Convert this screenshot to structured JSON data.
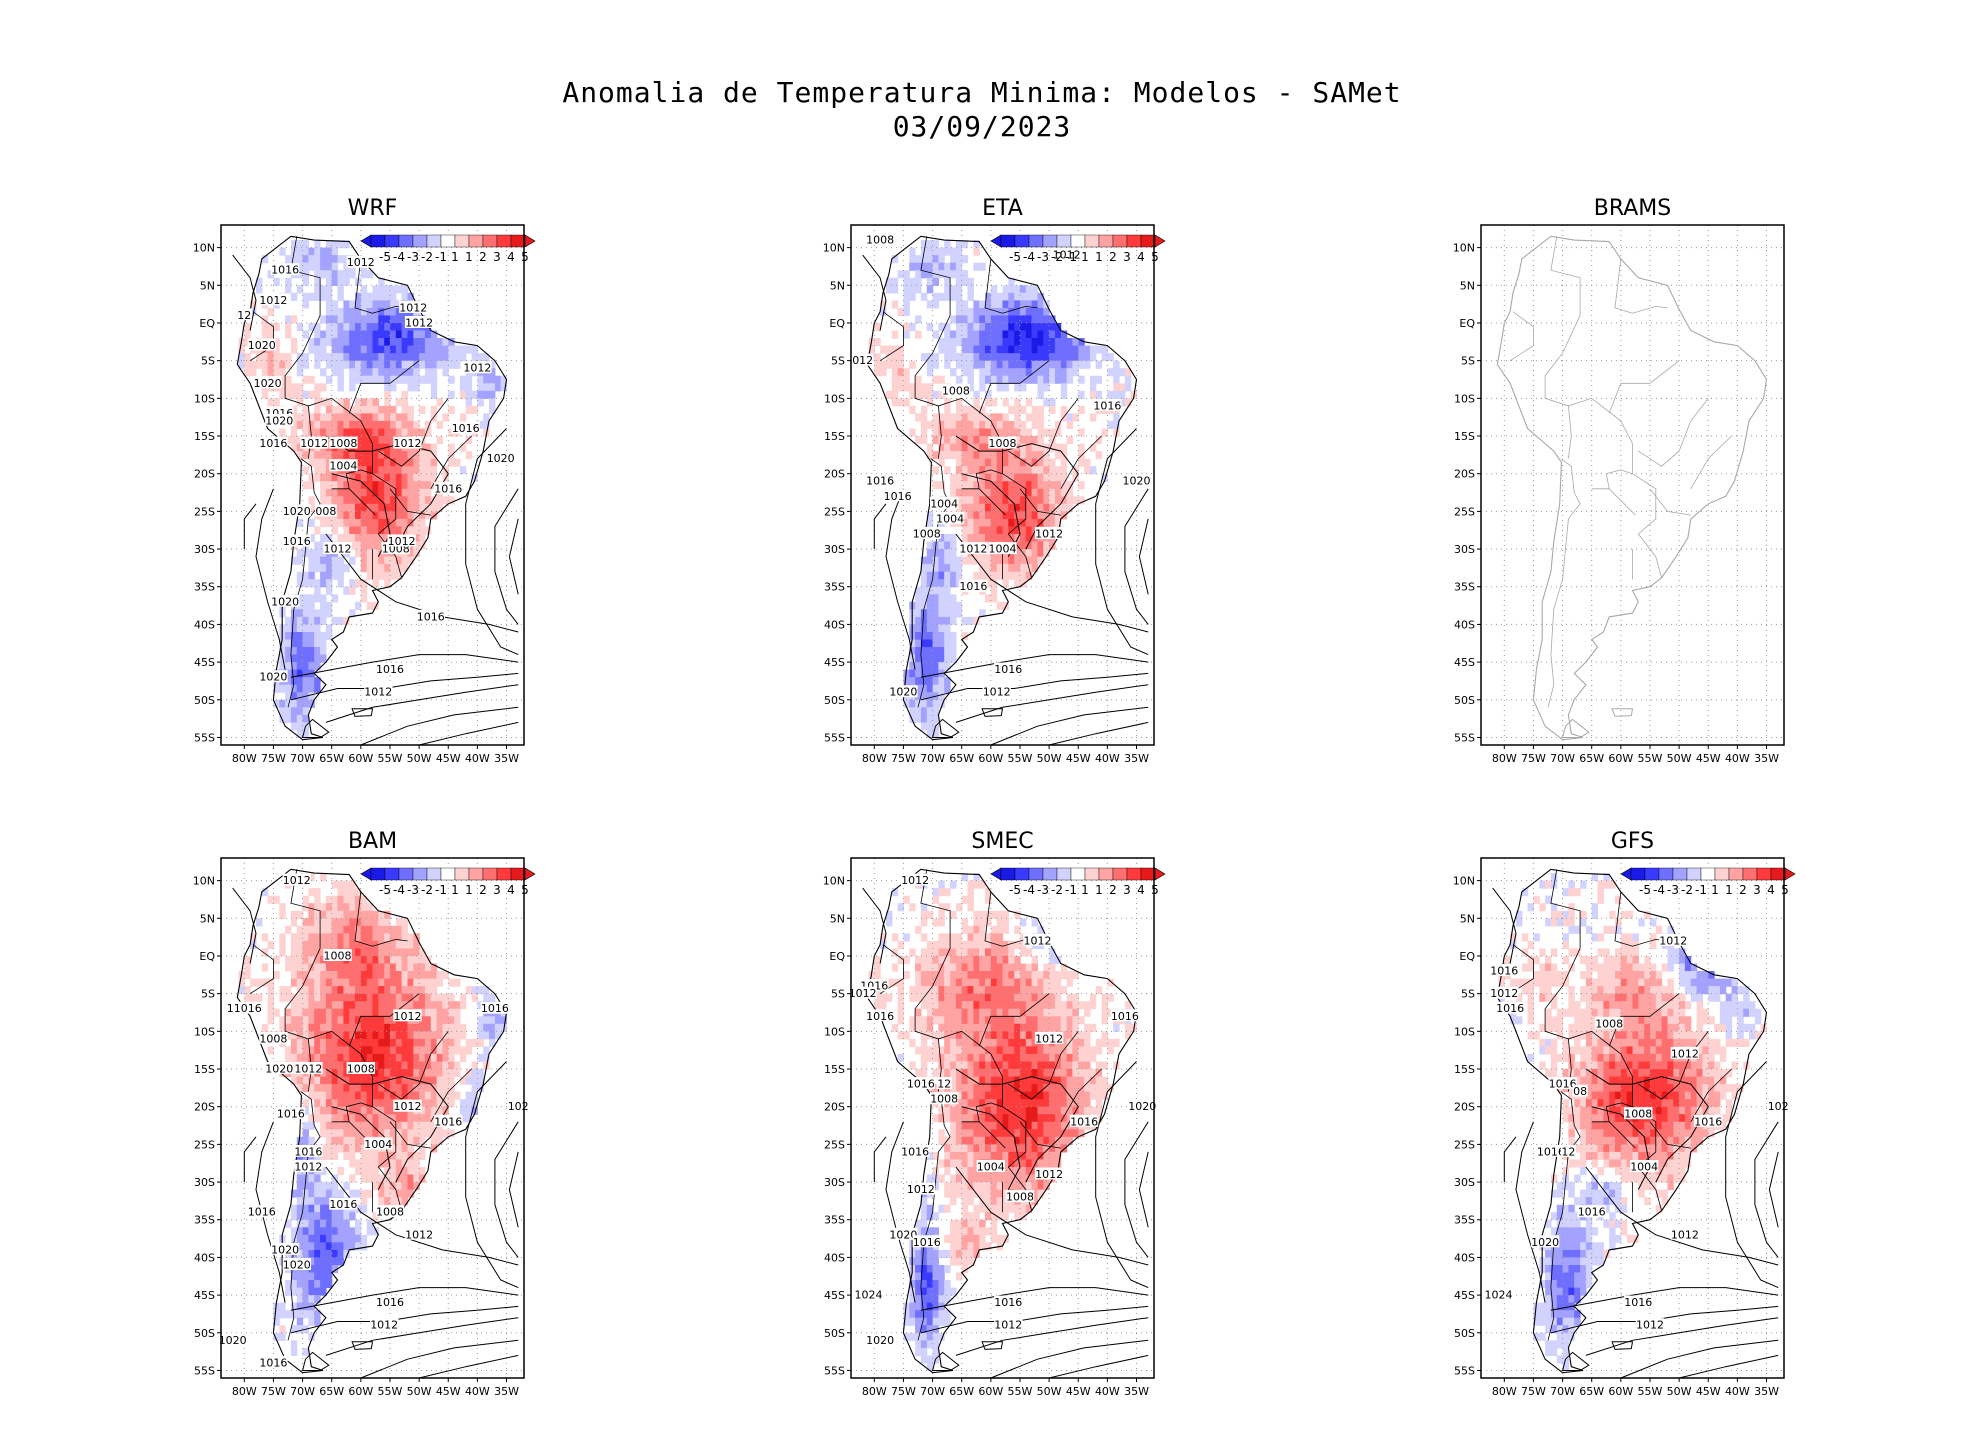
{
  "title_line1": "Anomalia de Temperatura Minima: Modelos - SAMet",
  "title_line2": "03/09/2023",
  "axes": {
    "lat_labels": [
      "10N",
      "5N",
      "EQ",
      "5S",
      "10S",
      "15S",
      "20S",
      "25S",
      "30S",
      "35S",
      "40S",
      "45S",
      "50S",
      "55S"
    ],
    "lon_labels": [
      "80W",
      "75W",
      "70W",
      "65W",
      "60W",
      "55W",
      "50W",
      "45W",
      "40W",
      "35W"
    ]
  },
  "colorbar": {
    "labels": [
      "-5",
      "-4",
      "-3",
      "-2",
      "-1",
      "1",
      "1",
      "2",
      "3",
      "4",
      "5"
    ],
    "colors": [
      "#1a1ae6",
      "#3a3aff",
      "#6f6fff",
      "#a3a3ff",
      "#d2d2ff",
      "#ffffff",
      "#ffd2d2",
      "#ffa3a3",
      "#ff6f6f",
      "#ff3a3a",
      "#e61a1a"
    ]
  },
  "panels": [
    {
      "name": "WRF",
      "has_data": true,
      "pattern": "wrf",
      "contours": [
        {
          "label": "1016",
          "lon": -73,
          "lat": 7
        },
        {
          "label": "1012",
          "lon": -60,
          "lat": 8
        },
        {
          "label": "1012",
          "lon": -75,
          "lat": 3
        },
        {
          "label": "1012",
          "lon": -51,
          "lat": 2
        },
        {
          "label": "1012",
          "lon": -50,
          "lat": 0
        },
        {
          "label": "12",
          "lon": -80,
          "lat": 1
        },
        {
          "label": "1020",
          "lon": -77,
          "lat": -3
        },
        {
          "label": "1020",
          "lon": -76,
          "lat": -8
        },
        {
          "label": "1012",
          "lon": -40,
          "lat": -6
        },
        {
          "label": "1016",
          "lon": -74,
          "lat": -12
        },
        {
          "label": "1020",
          "lon": -74,
          "lat": -13
        },
        {
          "label": "1016",
          "lon": -75,
          "lat": -16
        },
        {
          "label": "1012",
          "lon": -68,
          "lat": -16
        },
        {
          "label": "1008",
          "lon": -63,
          "lat": -16
        },
        {
          "label": "1012",
          "lon": -52,
          "lat": -16
        },
        {
          "label": "1016",
          "lon": -42,
          "lat": -14
        },
        {
          "label": "1004",
          "lon": -63,
          "lat": -19
        },
        {
          "label": "1020",
          "lon": -36,
          "lat": -18
        },
        {
          "label": "1016",
          "lon": -45,
          "lat": -22
        },
        {
          "label": "1020",
          "lon": -71,
          "lat": -25
        },
        {
          "label": "008",
          "lon": -66,
          "lat": -25
        },
        {
          "label": "1016",
          "lon": -71,
          "lat": -29
        },
        {
          "label": "1012",
          "lon": -64,
          "lat": -30
        },
        {
          "label": "1008",
          "lon": -54,
          "lat": -30
        },
        {
          "label": "1012",
          "lon": -53,
          "lat": -29
        },
        {
          "label": "1020",
          "lon": -73,
          "lat": -37
        },
        {
          "label": "1016",
          "lon": -48,
          "lat": -39
        },
        {
          "label": "1016",
          "lon": -55,
          "lat": -46
        },
        {
          "label": "1020",
          "lon": -75,
          "lat": -47
        },
        {
          "label": "1012",
          "lon": -57,
          "lat": -49
        }
      ]
    },
    {
      "name": "ETA",
      "has_data": true,
      "pattern": "eta",
      "contours": [
        {
          "label": "1008",
          "lon": -79,
          "lat": 11
        },
        {
          "label": "1012",
          "lon": -47,
          "lat": 9
        },
        {
          "label": "012",
          "lon": -82,
          "lat": -5
        },
        {
          "label": "1008",
          "lon": -66,
          "lat": -9
        },
        {
          "label": "1016",
          "lon": -40,
          "lat": -11
        },
        {
          "label": "1008",
          "lon": -58,
          "lat": -16
        },
        {
          "label": "1016",
          "lon": -79,
          "lat": -21
        },
        {
          "label": "1020",
          "lon": -35,
          "lat": -21
        },
        {
          "label": "1016",
          "lon": -76,
          "lat": -23
        },
        {
          "label": "1004",
          "lon": -68,
          "lat": -24
        },
        {
          "label": "1004",
          "lon": -67,
          "lat": -26
        },
        {
          "label": "1008",
          "lon": -71,
          "lat": -28
        },
        {
          "label": "1012",
          "lon": -63,
          "lat": -30
        },
        {
          "label": "1004",
          "lon": -58,
          "lat": -30
        },
        {
          "label": "1012",
          "lon": -50,
          "lat": -28
        },
        {
          "label": "1016",
          "lon": -63,
          "lat": -35
        },
        {
          "label": "1016",
          "lon": -57,
          "lat": -46
        },
        {
          "label": "1020",
          "lon": -75,
          "lat": -49
        },
        {
          "label": "1012",
          "lon": -59,
          "lat": -49
        }
      ]
    },
    {
      "name": "BRAMS",
      "has_data": false,
      "pattern": "none",
      "contours": []
    },
    {
      "name": "BAM",
      "has_data": true,
      "pattern": "bam",
      "contours": [
        {
          "label": "1012",
          "lon": -71,
          "lat": 10
        },
        {
          "label": "1008",
          "lon": -64,
          "lat": 0
        },
        {
          "label": "1012",
          "lon": -52,
          "lat": -8
        },
        {
          "label": "1016",
          "lon": -37,
          "lat": -7
        },
        {
          "label": "11016",
          "lon": -80,
          "lat": -7
        },
        {
          "label": "1008",
          "lon": -75,
          "lat": -11
        },
        {
          "label": "1020",
          "lon": -74,
          "lat": -15
        },
        {
          "label": "1012",
          "lon": -69,
          "lat": -15
        },
        {
          "label": "1008",
          "lon": -60,
          "lat": -15
        },
        {
          "label": "1012",
          "lon": -52,
          "lat": -20
        },
        {
          "label": "1016",
          "lon": -45,
          "lat": -22
        },
        {
          "label": "102",
          "lon": -33,
          "lat": -20
        },
        {
          "label": "1016",
          "lon": -72,
          "lat": -21
        },
        {
          "label": "1004",
          "lon": -57,
          "lat": -25
        },
        {
          "label": "1016",
          "lon": -69,
          "lat": -26
        },
        {
          "label": "1012",
          "lon": -69,
          "lat": -28
        },
        {
          "label": "1016",
          "lon": -63,
          "lat": -33
        },
        {
          "label": "1016",
          "lon": -77,
          "lat": -34
        },
        {
          "label": "1008",
          "lon": -55,
          "lat": -34
        },
        {
          "label": "1012",
          "lon": -50,
          "lat": -37
        },
        {
          "label": "1020",
          "lon": -73,
          "lat": -39
        },
        {
          "label": "1020",
          "lon": -71,
          "lat": -41
        },
        {
          "label": "1016",
          "lon": -55,
          "lat": -46
        },
        {
          "label": "1012",
          "lon": -56,
          "lat": -49
        },
        {
          "label": "1020",
          "lon": -82,
          "lat": -51
        },
        {
          "label": "1016",
          "lon": -75,
          "lat": -54
        }
      ]
    },
    {
      "name": "SMEC",
      "has_data": true,
      "pattern": "smec",
      "contours": [
        {
          "label": "1012",
          "lon": -73,
          "lat": 10
        },
        {
          "label": "1012",
          "lon": -52,
          "lat": 2
        },
        {
          "label": "1016",
          "lon": -80,
          "lat": -4
        },
        {
          "label": "1012",
          "lon": -82,
          "lat": -5
        },
        {
          "label": "1016",
          "lon": -79,
          "lat": -8
        },
        {
          "label": "1016",
          "lon": -37,
          "lat": -8
        },
        {
          "label": "1012",
          "lon": -50,
          "lat": -11
        },
        {
          "label": "1016",
          "lon": -72,
          "lat": -17
        },
        {
          "label": "12",
          "lon": -68,
          "lat": -17
        },
        {
          "label": "1008",
          "lon": -68,
          "lat": -19
        },
        {
          "label": "1016",
          "lon": -44,
          "lat": -22
        },
        {
          "label": "1020",
          "lon": -34,
          "lat": -20
        },
        {
          "label": "1016",
          "lon": -73,
          "lat": -26
        },
        {
          "label": "1004",
          "lon": -60,
          "lat": -28
        },
        {
          "label": "1012",
          "lon": -50,
          "lat": -29
        },
        {
          "label": "1012",
          "lon": -72,
          "lat": -31
        },
        {
          "label": "1008",
          "lon": -55,
          "lat": -32
        },
        {
          "label": "1020",
          "lon": -75,
          "lat": -37
        },
        {
          "label": "1016",
          "lon": -71,
          "lat": -38
        },
        {
          "label": "1024",
          "lon": -81,
          "lat": -45
        },
        {
          "label": "1016",
          "lon": -57,
          "lat": -46
        },
        {
          "label": "1012",
          "lon": -57,
          "lat": -49
        },
        {
          "label": "1020",
          "lon": -79,
          "lat": -51
        }
      ]
    },
    {
      "name": "GFS",
      "has_data": true,
      "pattern": "gfs",
      "contours": [
        {
          "label": "1012",
          "lon": -51,
          "lat": 2
        },
        {
          "label": "1016",
          "lon": -80,
          "lat": -2
        },
        {
          "label": "1012",
          "lon": -80,
          "lat": -5
        },
        {
          "label": "1016",
          "lon": -79,
          "lat": -7
        },
        {
          "label": "1008",
          "lon": -62,
          "lat": -9
        },
        {
          "label": "1012",
          "lon": -49,
          "lat": -13
        },
        {
          "label": "1016",
          "lon": -70,
          "lat": -17
        },
        {
          "label": "08",
          "lon": -67,
          "lat": -18
        },
        {
          "label": "1016",
          "lon": -45,
          "lat": -22
        },
        {
          "label": "102",
          "lon": -33,
          "lat": -20
        },
        {
          "label": "1008",
          "lon": -57,
          "lat": -21
        },
        {
          "label": "1016",
          "lon": -72,
          "lat": -26
        },
        {
          "label": "12",
          "lon": -69,
          "lat": -26
        },
        {
          "label": "1004",
          "lon": -56,
          "lat": -28
        },
        {
          "label": "1016",
          "lon": -65,
          "lat": -34
        },
        {
          "label": "1020",
          "lon": -73,
          "lat": -38
        },
        {
          "label": "1012",
          "lon": -49,
          "lat": -37
        },
        {
          "label": "1024",
          "lon": -81,
          "lat": -45
        },
        {
          "label": "1016",
          "lon": -57,
          "lat": -46
        },
        {
          "label": "1012",
          "lon": -55,
          "lat": -49
        }
      ]
    }
  ]
}
